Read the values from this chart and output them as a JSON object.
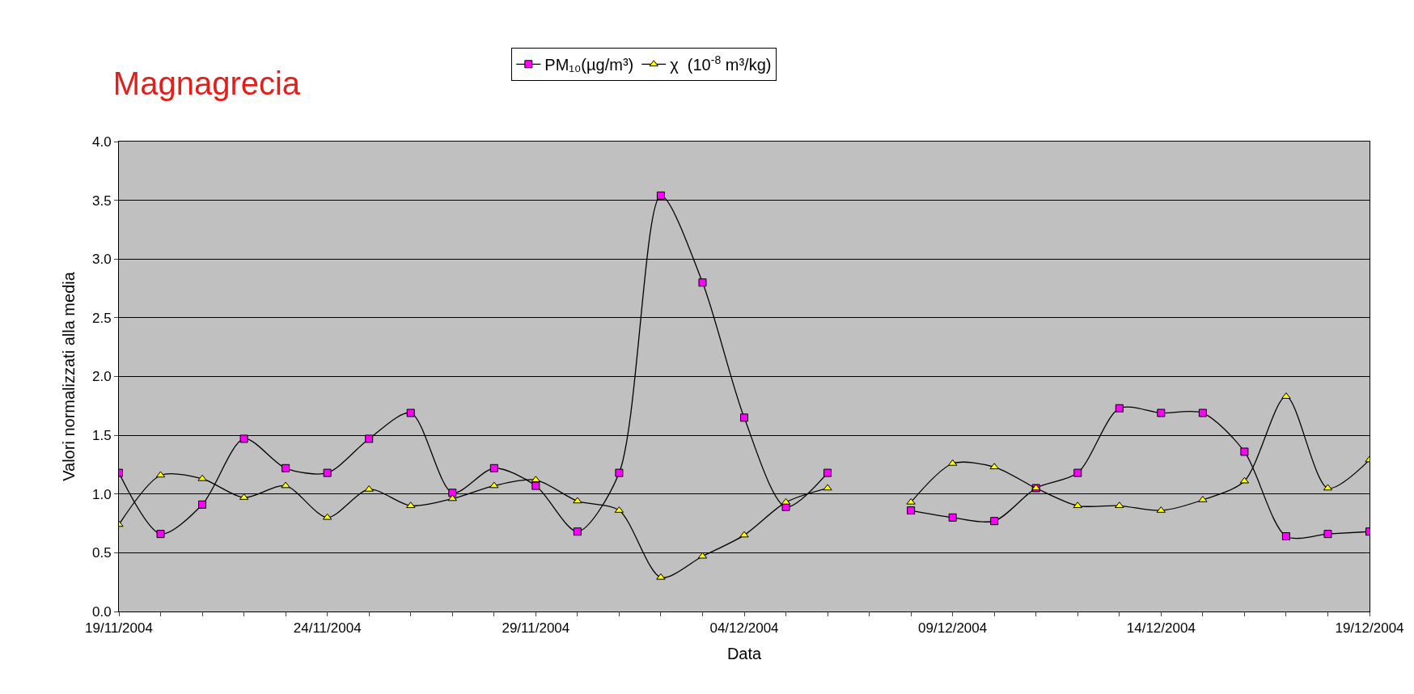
{
  "chart_data": {
    "type": "line",
    "title": "Magnagrecia",
    "xlabel": "Data",
    "ylabel": "Valori normalizzati alla media",
    "x": [
      "2004-11-19",
      "2004-11-20",
      "2004-11-21",
      "2004-11-22",
      "2004-11-23",
      "2004-11-24",
      "2004-11-25",
      "2004-11-26",
      "2004-11-27",
      "2004-11-28",
      "2004-11-29",
      "2004-11-30",
      "2004-12-01",
      "2004-12-02",
      "2004-12-03",
      "2004-12-04",
      "2004-12-05",
      "2004-12-06",
      "2004-12-07",
      "2004-12-08",
      "2004-12-09",
      "2004-12-10",
      "2004-12-11",
      "2004-12-12",
      "2004-12-13",
      "2004-12-14",
      "2004-12-15",
      "2004-12-16",
      "2004-12-17",
      "2004-12-18",
      "2004-12-19"
    ],
    "series": [
      {
        "name": "PM₁₀(µg/m³)",
        "color": "#ff00ff",
        "marker": "square",
        "values": [
          1.18,
          0.66,
          0.91,
          1.47,
          1.22,
          1.18,
          1.47,
          1.69,
          1.01,
          1.22,
          1.07,
          0.68,
          1.18,
          3.54,
          2.8,
          1.65,
          0.89,
          1.18,
          null,
          0.86,
          0.8,
          0.77,
          1.05,
          1.18,
          1.73,
          1.69,
          1.69,
          1.36,
          0.64,
          0.66,
          0.68
        ]
      },
      {
        "name": "χ  (10$^{-8}$ m³/kg)",
        "color": "#ffff00",
        "marker": "triangle",
        "values": [
          0.74,
          1.16,
          1.13,
          0.97,
          1.07,
          0.8,
          1.04,
          0.9,
          0.96,
          1.07,
          1.12,
          0.94,
          0.86,
          0.29,
          0.47,
          0.65,
          0.93,
          1.05,
          null,
          0.93,
          1.26,
          1.23,
          1.05,
          0.9,
          0.9,
          0.86,
          0.95,
          1.11,
          1.83,
          1.05,
          1.29
        ]
      }
    ],
    "xlim": [
      "2004-11-19",
      "2004-12-19"
    ],
    "xticks": [
      {
        "value": "2004-11-19",
        "label": "19/11/2004"
      },
      {
        "value": "2004-11-20",
        "label": null
      },
      {
        "value": "2004-11-21",
        "label": null
      },
      {
        "value": "2004-11-22",
        "label": null
      },
      {
        "value": "2004-11-23",
        "label": null
      },
      {
        "value": "2004-11-24",
        "label": "24/11/2004"
      },
      {
        "value": "2004-11-25",
        "label": null
      },
      {
        "value": "2004-11-26",
        "label": null
      },
      {
        "value": "2004-11-27",
        "label": null
      },
      {
        "value": "2004-11-28",
        "label": null
      },
      {
        "value": "2004-11-29",
        "label": "29/11/2004"
      },
      {
        "value": "2004-11-30",
        "label": null
      },
      {
        "value": "2004-12-01",
        "label": null
      },
      {
        "value": "2004-12-02",
        "label": null
      },
      {
        "value": "2004-12-03",
        "label": null
      },
      {
        "value": "2004-12-04",
        "label": "04/12/2004"
      },
      {
        "value": "2004-12-05",
        "label": null
      },
      {
        "value": "2004-12-06",
        "label": null
      },
      {
        "value": "2004-12-07",
        "label": null
      },
      {
        "value": "2004-12-08",
        "label": null
      },
      {
        "value": "2004-12-09",
        "label": "09/12/2004"
      },
      {
        "value": "2004-12-10",
        "label": null
      },
      {
        "value": "2004-12-11",
        "label": null
      },
      {
        "value": "2004-12-12",
        "label": null
      },
      {
        "value": "2004-12-13",
        "label": null
      },
      {
        "value": "2004-12-14",
        "label": "14/12/2004"
      },
      {
        "value": "2004-12-15",
        "label": null
      },
      {
        "value": "2004-12-16",
        "label": null
      },
      {
        "value": "2004-12-17",
        "label": null
      },
      {
        "value": "2004-12-18",
        "label": null
      },
      {
        "value": "2004-12-19",
        "label": "19/12/2004"
      }
    ],
    "ylim": [
      0,
      4
    ],
    "yticks": [
      {
        "value": 0,
        "label": "0.0"
      },
      {
        "value": 0.5,
        "label": "0.5"
      },
      {
        "value": 1,
        "label": "1.0"
      },
      {
        "value": 1.5,
        "label": "1.5"
      },
      {
        "value": 2,
        "label": "2.0"
      },
      {
        "value": 2.5,
        "label": "2.5"
      },
      {
        "value": 3,
        "label": "3.0"
      },
      {
        "value": 3.5,
        "label": "3.5"
      },
      {
        "value": 4,
        "label": "4.0"
      }
    ],
    "grid": "y",
    "legend": "top",
    "line_style": "solid"
  }
}
